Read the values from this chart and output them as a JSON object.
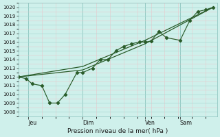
{
  "bg_color": "#cff0eb",
  "grid_color_major": "#a8d8d2",
  "grid_color_minor": "#e8c8cc",
  "line_color": "#2a5c2a",
  "xlabel": "Pression niveau de la mer( hPa )",
  "ylim": [
    1007.5,
    1020.5
  ],
  "yticks": [
    1008,
    1009,
    1010,
    1011,
    1012,
    1013,
    1014,
    1015,
    1016,
    1017,
    1018,
    1019,
    1020
  ],
  "xtick_labels": [
    "Jeu",
    "Dim",
    "Ven",
    "Sam"
  ],
  "xtick_positions": [
    0.05,
    0.33,
    0.65,
    0.83
  ],
  "vline_positions": [
    0.05,
    0.33,
    0.65,
    0.83
  ],
  "series1_x": [
    0.0,
    0.04,
    0.07,
    0.12,
    0.16,
    0.2,
    0.24,
    0.3,
    0.33,
    0.38,
    0.42,
    0.46,
    0.5,
    0.54,
    0.58,
    0.62,
    0.65,
    0.68,
    0.72,
    0.76,
    0.83,
    0.88,
    0.92,
    0.96,
    1.0
  ],
  "series1_y": [
    1012.0,
    1011.8,
    1011.2,
    1011.0,
    1009.0,
    1009.0,
    1010.0,
    1012.5,
    1012.5,
    1013.0,
    1014.0,
    1014.0,
    1015.0,
    1015.5,
    1015.8,
    1016.0,
    1016.0,
    1016.1,
    1017.2,
    1016.5,
    1016.2,
    1018.5,
    1019.5,
    1019.7,
    1020.0
  ],
  "series2_x": [
    0.0,
    0.33,
    0.65,
    1.0
  ],
  "series2_y": [
    1012.0,
    1012.8,
    1015.8,
    1020.0
  ],
  "series3_x": [
    0.0,
    0.33,
    0.65,
    1.0
  ],
  "series3_y": [
    1012.0,
    1013.2,
    1016.2,
    1020.0
  ],
  "xlim": [
    0.0,
    1.02
  ]
}
